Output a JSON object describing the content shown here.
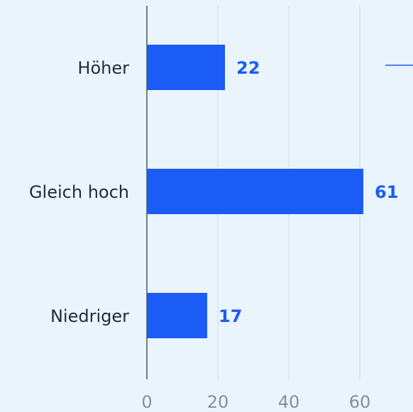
{
  "chart_data": {
    "type": "bar",
    "orientation": "horizontal",
    "categories": [
      "Höher",
      "Gleich hoch",
      "Niedriger"
    ],
    "values": [
      22,
      61,
      17
    ],
    "color": "#1a5cf5",
    "xlim": [
      0,
      75
    ],
    "xticks": [
      0,
      20,
      40,
      60
    ],
    "grid": true
  }
}
